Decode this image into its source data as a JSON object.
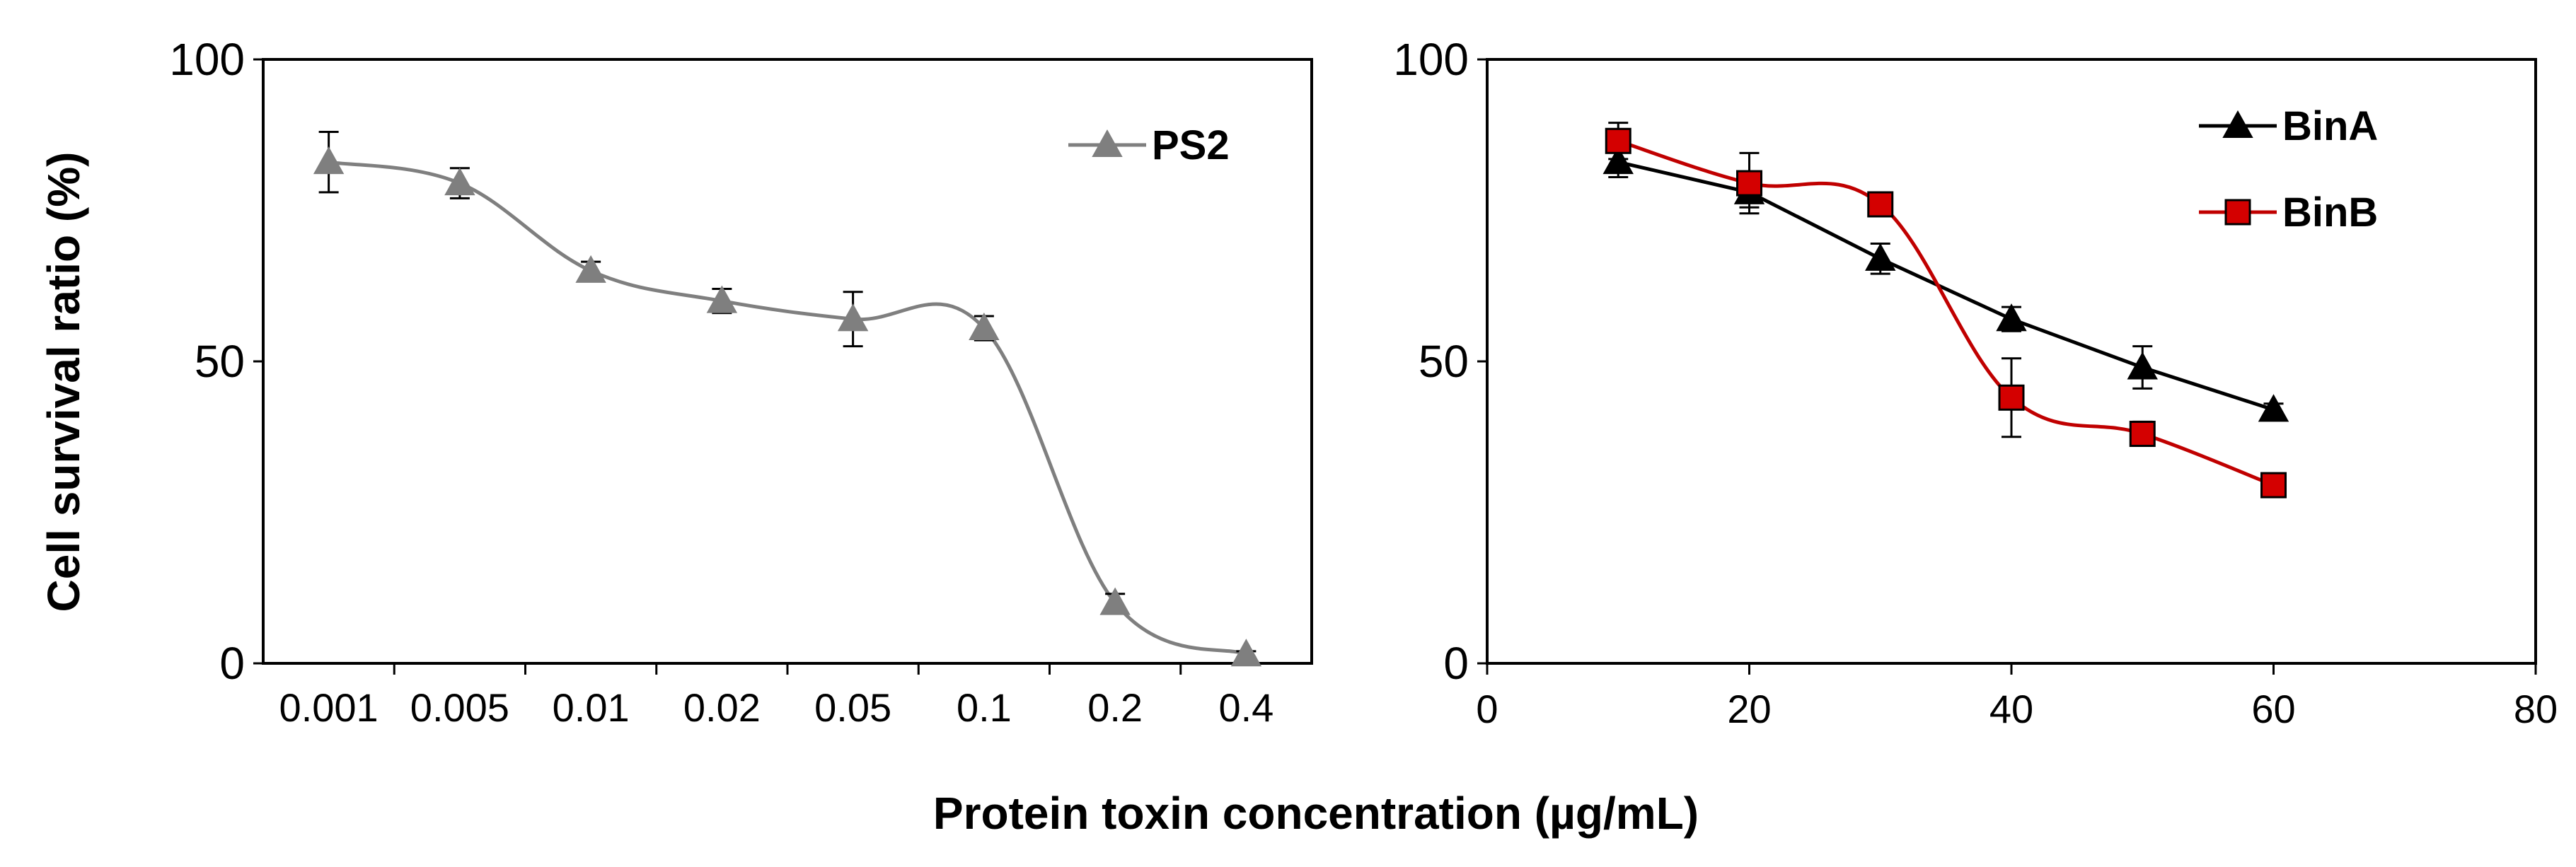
{
  "figure": {
    "ylabel": "Cell survival ratio (%)",
    "xlabel": "Protein toxin concentration (µg/mL)"
  },
  "chart_data": [
    {
      "type": "line",
      "title": "",
      "ylabel": "Cell survival ratio (%)",
      "xlabel": "Protein toxin concentration (µg/mL)",
      "x_scale": "categorical",
      "categories": [
        "0.001",
        "0.005",
        "0.01",
        "0.02",
        "0.05",
        "0.1",
        "0.2",
        "0.4"
      ],
      "x_tick_labels": [
        "0.001",
        "0.005",
        "0.01",
        "0.02",
        "0.05",
        "0.1",
        "0.2",
        "0.4"
      ],
      "ylim": [
        0,
        100
      ],
      "y_ticks": [
        0,
        50,
        100
      ],
      "y_tick_labels": [
        "0",
        "50",
        "100"
      ],
      "grid": false,
      "legend": "top-right",
      "series": [
        {
          "name": "PS2",
          "color": "#7f7f7f",
          "marker": "triangle",
          "smooth": true,
          "values": [
            83,
            79.5,
            65,
            60,
            57,
            55.5,
            10,
            1.5
          ],
          "errors": [
            5,
            2.5,
            1.5,
            2,
            4.5,
            2,
            1.5,
            0.5
          ]
        }
      ]
    },
    {
      "type": "line",
      "title": "",
      "x_scale": "linear",
      "xlim": [
        0,
        80
      ],
      "x_ticks": [
        0,
        20,
        40,
        60,
        80
      ],
      "x_tick_labels": [
        "0",
        "20",
        "40",
        "60",
        "80"
      ],
      "ylim": [
        0,
        100
      ],
      "y_ticks": [
        0,
        50,
        100
      ],
      "y_tick_labels": [
        "0",
        "50",
        "100"
      ],
      "grid": false,
      "legend": "top-right",
      "series": [
        {
          "name": "BinA",
          "color": "#000000",
          "marker": "triangle",
          "smooth": false,
          "x": [
            10,
            20,
            30,
            40,
            50,
            60
          ],
          "values": [
            83,
            78,
            67,
            57,
            49,
            42
          ],
          "errors": [
            2.5,
            2.5,
            2.5,
            2,
            3.5,
            1
          ]
        },
        {
          "name": "BinB",
          "color": "#c00000",
          "marker_fill": "#d40000",
          "marker": "square",
          "smooth": true,
          "x": [
            10,
            20,
            30,
            40,
            50,
            60
          ],
          "values": [
            86.5,
            79.5,
            76,
            44,
            38,
            29.5
          ],
          "errors": [
            3,
            5,
            1.5,
            6.5,
            2,
            1
          ]
        }
      ]
    }
  ]
}
